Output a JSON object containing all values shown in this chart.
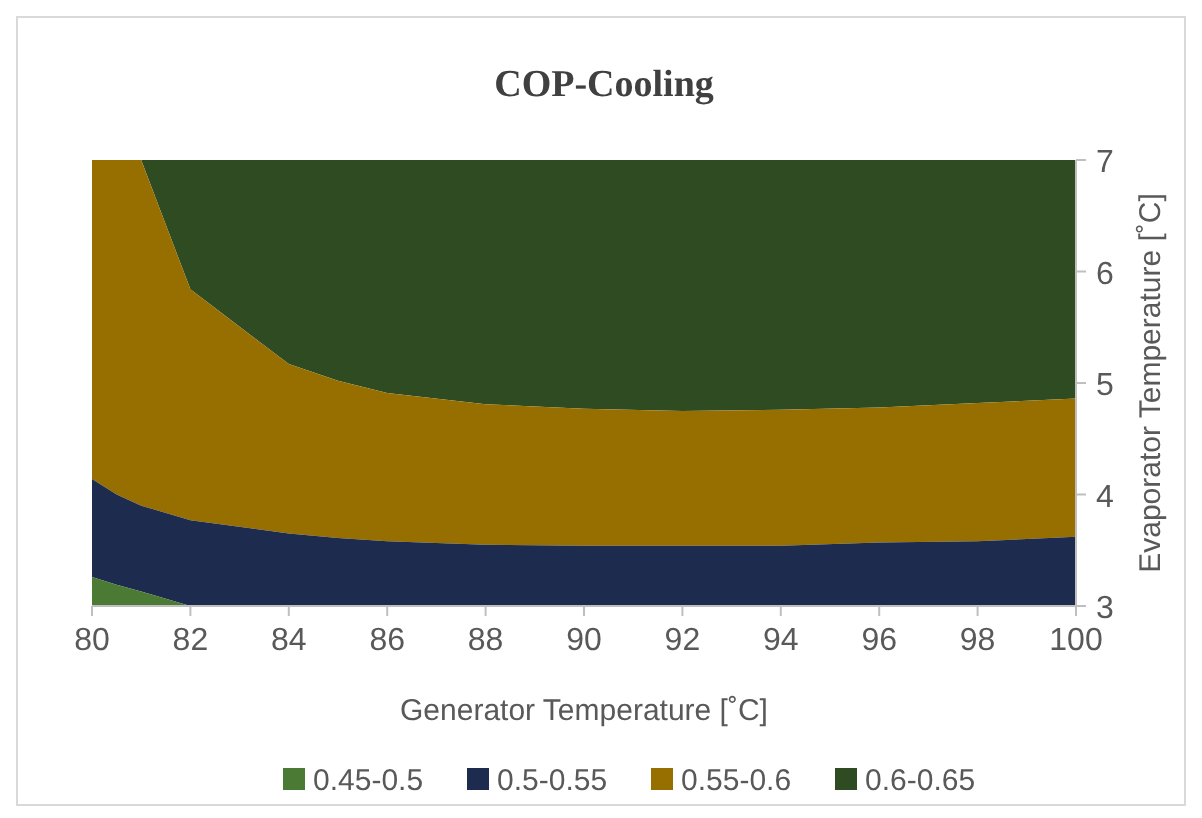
{
  "chart_data": {
    "type": "area",
    "title": "COP-Cooling",
    "xlabel": "Generator Temperature [˚C]",
    "ylabel": "Evaporator Temperature [˚C]",
    "x": [
      80,
      80.5,
      81,
      82,
      84,
      85,
      86,
      88,
      90,
      92,
      94,
      96,
      98,
      100
    ],
    "series": [
      {
        "name": "0.45-0.5",
        "color": "#4a7a34",
        "values": [
          3.26,
          3.19,
          3.13,
          3,
          3,
          3,
          3,
          3,
          3,
          3,
          3,
          3,
          3,
          3
        ]
      },
      {
        "name": "0.5-0.55",
        "color": "#1c2b4e",
        "values": [
          4.14,
          4.0,
          3.9,
          3.77,
          3.65,
          3.61,
          3.58,
          3.55,
          3.54,
          3.54,
          3.54,
          3.57,
          3.58,
          3.62
        ]
      },
      {
        "name": "0.55-0.6",
        "color": "#976f00",
        "values": [
          7,
          7,
          7,
          5.84,
          5.17,
          5.02,
          4.91,
          4.81,
          4.77,
          4.75,
          4.76,
          4.78,
          4.82,
          4.86
        ]
      },
      {
        "name": "0.6-0.65",
        "color": "#2f4b22",
        "values": [
          null,
          null,
          7,
          7,
          7,
          7,
          7,
          7,
          7,
          7,
          7,
          7,
          7,
          7
        ]
      }
    ],
    "xlim": [
      80,
      100
    ],
    "xticks": [
      80,
      82,
      84,
      86,
      88,
      90,
      92,
      94,
      96,
      98,
      100
    ],
    "ylim": [
      3,
      7
    ],
    "yticks": [
      3,
      4,
      5,
      6,
      7
    ],
    "legend": "bottom"
  }
}
